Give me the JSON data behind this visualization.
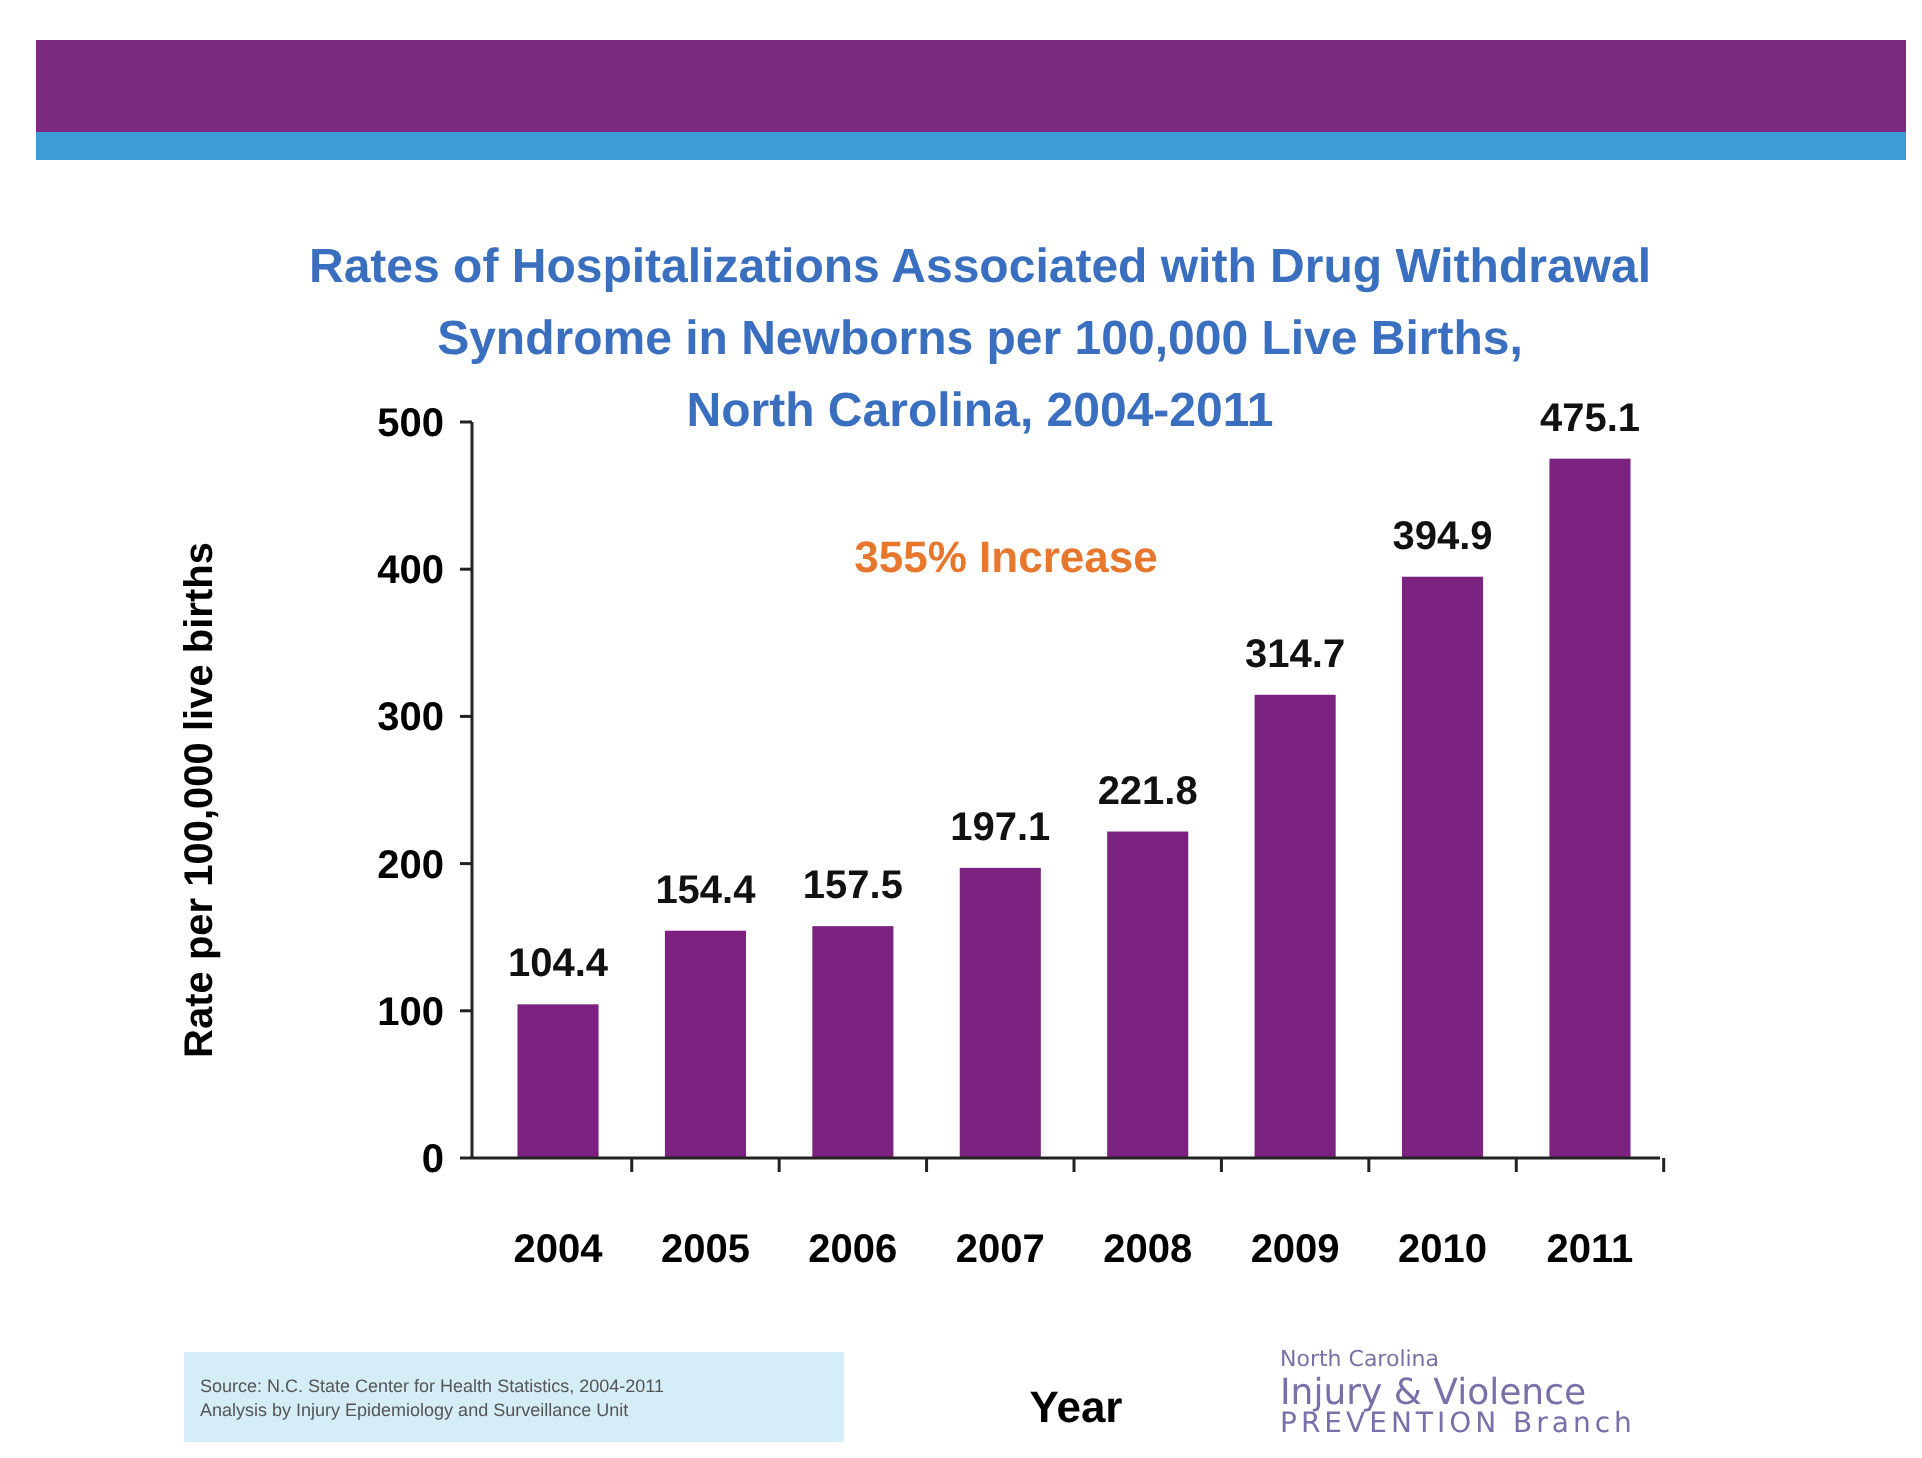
{
  "chart_data": {
    "type": "bar",
    "title": "Rates of Hospitalizations Associated with Drug Withdrawal\nSyndrome in Newborns per 100,000 Live Births,\nNorth Carolina, 2004-2011",
    "xlabel": "Year",
    "ylabel": "Rate per 100,000 live births",
    "categories": [
      "2004",
      "2005",
      "2006",
      "2007",
      "2008",
      "2009",
      "2010",
      "2011"
    ],
    "values": [
      104.4,
      154.4,
      157.5,
      197.1,
      221.8,
      314.7,
      394.9,
      475.1
    ],
    "color": "#7b2281",
    "ylim": [
      0,
      500
    ],
    "yticks": [
      0,
      100,
      200,
      300,
      400,
      500
    ],
    "data_labels": true,
    "annotations": [
      "355% Increase",
      "Source: N.C. State Center for Health Statistics, 2004-2011\nAnalysis by Injury Epidemiology and Surveillance Unit",
      "North Carolina",
      "Injury & Violence",
      "PREVENTION Branch"
    ]
  }
}
